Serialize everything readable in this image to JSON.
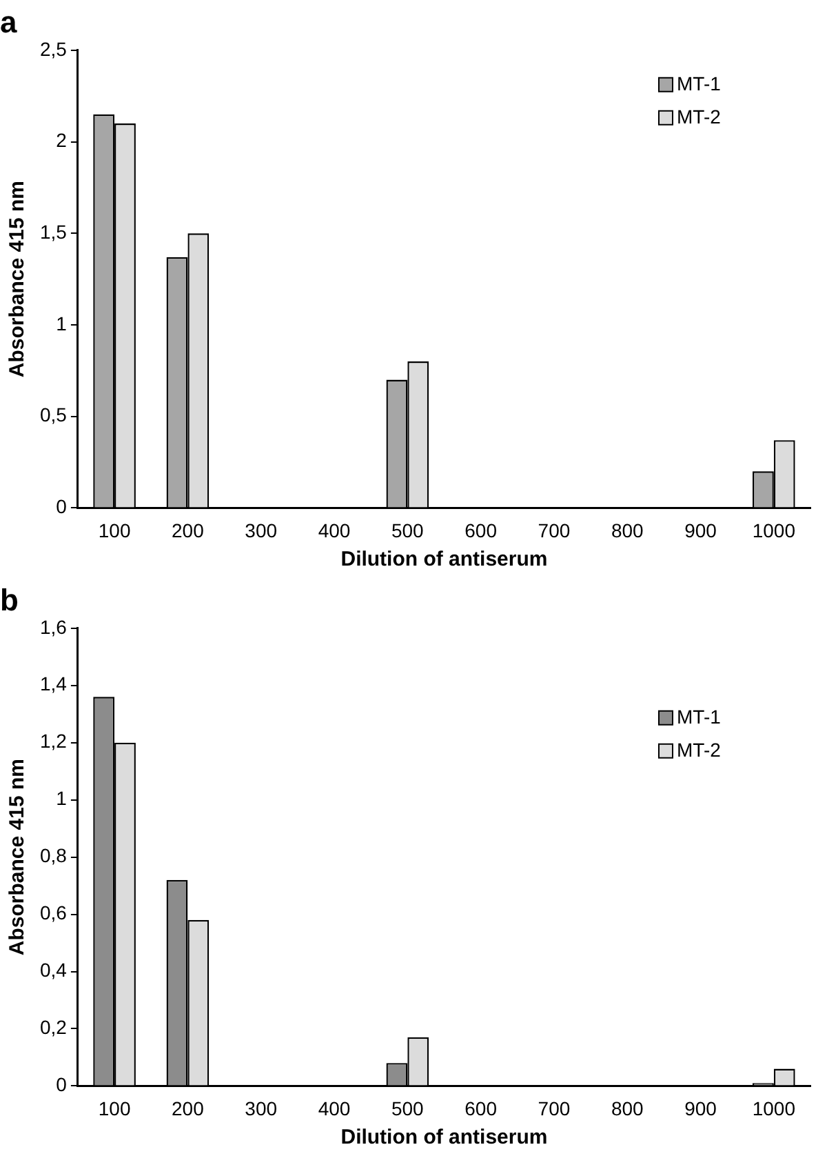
{
  "chart_data": [
    {
      "type": "bar",
      "title": "a",
      "xlabel": "Dilution of antiserum",
      "ylabel": "Absorbance 415 nm",
      "categories": [
        "100",
        "200",
        "300",
        "400",
        "500",
        "600",
        "700",
        "800",
        "900",
        "1000"
      ],
      "series": [
        {
          "name": "MT-1",
          "color": "#a6a6a6",
          "values": [
            2.15,
            1.37,
            null,
            null,
            0.7,
            null,
            null,
            null,
            null,
            0.2
          ]
        },
        {
          "name": "MT-2",
          "color": "#dcdcdc",
          "values": [
            2.1,
            1.5,
            null,
            null,
            0.8,
            null,
            null,
            null,
            null,
            0.37
          ]
        }
      ],
      "ylim": [
        0,
        2.5
      ],
      "yticks": [
        0,
        {
          "value": 0.5,
          "label": "0,5"
        },
        1,
        {
          "value": 1.5,
          "label": "1,5"
        },
        2,
        {
          "value": 2.5,
          "label": "2,5"
        }
      ],
      "grid": false,
      "legend": "top right"
    },
    {
      "type": "bar",
      "title": "b",
      "xlabel": "Dilution of antiserum",
      "ylabel": "Absorbance 415 nm",
      "categories": [
        "100",
        "200",
        "300",
        "400",
        "500",
        "600",
        "700",
        "800",
        "900",
        "1000"
      ],
      "series": [
        {
          "name": "MT-1",
          "color": "#8c8c8c",
          "values": [
            1.36,
            0.72,
            null,
            null,
            0.08,
            null,
            null,
            null,
            null,
            0.01
          ]
        },
        {
          "name": "MT-2",
          "color": "#dcdcdc",
          "values": [
            1.2,
            0.58,
            null,
            null,
            0.17,
            null,
            null,
            null,
            null,
            0.06
          ]
        }
      ],
      "ylim": [
        0,
        1.6
      ],
      "yticks": [
        0,
        {
          "value": 0.2,
          "label": "0,2"
        },
        {
          "value": 0.4,
          "label": "0,4"
        },
        {
          "value": 0.6,
          "label": "0,6"
        },
        {
          "value": 0.8,
          "label": "0,8"
        },
        1,
        {
          "value": 1.2,
          "label": "1,2"
        },
        {
          "value": 1.4,
          "label": "1,4"
        },
        {
          "value": 1.6,
          "label": "1,6"
        }
      ],
      "grid": false,
      "legend": "top right"
    }
  ]
}
